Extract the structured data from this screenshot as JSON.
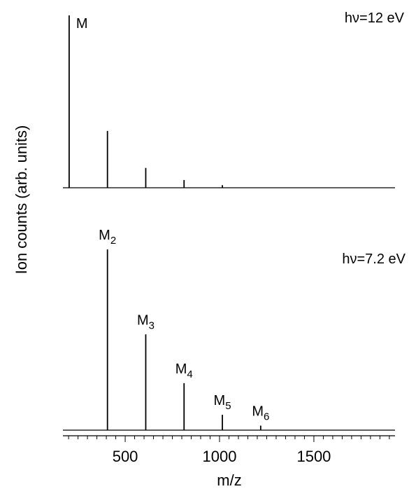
{
  "chart_data": {
    "type": "line",
    "xlabel": "m/z",
    "ylabel": "Ion counts (arb. units)",
    "xlim": [
      170,
      1930
    ],
    "x_ticks": [
      500,
      1000,
      1500
    ],
    "x_tick_labels": [
      "500",
      "1000",
      "1500"
    ],
    "x_minor_step": 50,
    "grid": false,
    "panels": [
      {
        "condition": "hν=12 eV",
        "ylim": [
          0,
          1.0
        ],
        "peaks": [
          {
            "mz": 203,
            "intensity": 1.0,
            "label_base": "M",
            "label_sub": ""
          },
          {
            "mz": 406,
            "intensity": 0.33,
            "label_base": "",
            "label_sub": ""
          },
          {
            "mz": 609,
            "intensity": 0.115,
            "label_base": "",
            "label_sub": ""
          },
          {
            "mz": 812,
            "intensity": 0.045,
            "label_base": "",
            "label_sub": ""
          },
          {
            "mz": 1015,
            "intensity": 0.015,
            "label_base": "",
            "label_sub": ""
          }
        ]
      },
      {
        "condition": "hν=7.2 eV",
        "ylim": [
          0,
          1.0
        ],
        "peaks": [
          {
            "mz": 406,
            "intensity": 1.0,
            "label_base": "M",
            "label_sub": "2"
          },
          {
            "mz": 609,
            "intensity": 0.53,
            "label_base": "M",
            "label_sub": "3"
          },
          {
            "mz": 812,
            "intensity": 0.26,
            "label_base": "M",
            "label_sub": "4"
          },
          {
            "mz": 1015,
            "intensity": 0.085,
            "label_base": "M",
            "label_sub": "5"
          },
          {
            "mz": 1218,
            "intensity": 0.025,
            "label_base": "M",
            "label_sub": "6"
          }
        ]
      }
    ]
  }
}
